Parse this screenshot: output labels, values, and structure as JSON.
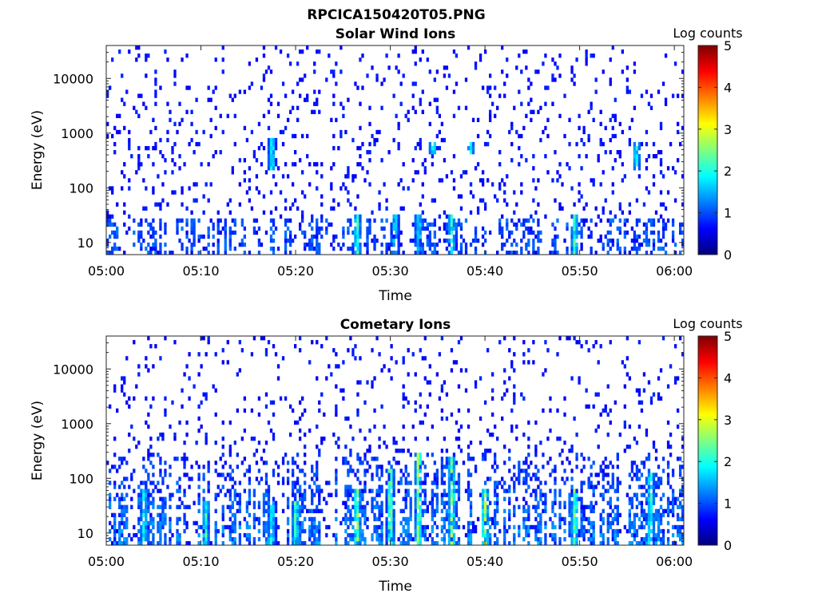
{
  "figure_title": "RPCICA150420T05.PNG",
  "chart_data": [
    {
      "type": "heatmap",
      "title": "Solar Wind Ions",
      "xlabel": "Time",
      "ylabel": "Energy (eV)",
      "yscale": "log",
      "xlim": [
        "05:00",
        "06:01"
      ],
      "ylim": [
        6,
        40000
      ],
      "xticks": [
        "05:00",
        "05:10",
        "05:20",
        "05:30",
        "05:40",
        "05:50",
        "06:00"
      ],
      "yticks": [
        "10",
        "100",
        "1000",
        "10000"
      ],
      "colorbar": {
        "label": "Log counts",
        "range": [
          0,
          5
        ],
        "ticks": [
          "0",
          "1",
          "2",
          "3",
          "4",
          "5"
        ],
        "colormap": "jet"
      },
      "grid": false,
      "summary": {
        "background_scatter_level": 0.3,
        "low_energy_band_ev": [
          6,
          28
        ],
        "low_energy_band_level": 0.5,
        "enhanced_features": [
          {
            "time": "05:17.5",
            "energy_ev": [
              200,
              800
            ],
            "log_counts": 1.6
          },
          {
            "time": "05:26.5",
            "energy_ev": [
              6,
              30
            ],
            "log_counts": 1.8
          },
          {
            "time": "05:30.5",
            "energy_ev": [
              6,
              30
            ],
            "log_counts": 1.3
          },
          {
            "time": "05:33",
            "energy_ev": [
              6,
              30
            ],
            "log_counts": 1.5
          },
          {
            "time": "05:34.5",
            "energy_ev": [
              400,
              700
            ],
            "log_counts": 1.7
          },
          {
            "time": "05:36.5",
            "energy_ev": [
              6,
              30
            ],
            "log_counts": 1.6
          },
          {
            "time": "05:38.5",
            "energy_ev": [
              400,
              700
            ],
            "log_counts": 1.5
          },
          {
            "time": "05:49.5",
            "energy_ev": [
              6,
              30
            ],
            "log_counts": 1.9
          },
          {
            "time": "05:56",
            "energy_ev": [
              200,
              700
            ],
            "log_counts": 1.5
          }
        ]
      }
    },
    {
      "type": "heatmap",
      "title": "Cometary Ions",
      "xlabel": "Time",
      "ylabel": "Energy (eV)",
      "yscale": "log",
      "xlim": [
        "05:00",
        "06:01"
      ],
      "ylim": [
        6,
        40000
      ],
      "xticks": [
        "05:00",
        "05:10",
        "05:20",
        "05:30",
        "05:40",
        "05:50",
        "06:00"
      ],
      "yticks": [
        "10",
        "100",
        "1000",
        "10000"
      ],
      "colorbar": {
        "label": "Log counts",
        "range": [
          0,
          5
        ],
        "ticks": [
          "0",
          "1",
          "2",
          "3",
          "4",
          "5"
        ],
        "colormap": "jet"
      },
      "grid": false,
      "summary": {
        "background_scatter_level": 0.3,
        "low_energy_band_ev": [
          6,
          300
        ],
        "enhanced_features": [
          {
            "time": "05:04",
            "energy_ev": [
              6,
              60
            ],
            "log_counts": 1.6
          },
          {
            "time": "05:10.5",
            "energy_ev": [
              6,
              40
            ],
            "log_counts": 1.8
          },
          {
            "time": "05:17.5",
            "energy_ev": [
              6,
              40
            ],
            "log_counts": 1.7
          },
          {
            "time": "05:20",
            "energy_ev": [
              6,
              40
            ],
            "log_counts": 1.9
          },
          {
            "time": "05:26.5",
            "energy_ev": [
              6,
              60
            ],
            "log_counts": 2.3
          },
          {
            "time": "05:30",
            "energy_ev": [
              6,
              150
            ],
            "log_counts": 2.5
          },
          {
            "time": "05:33",
            "energy_ev": [
              6,
              300
            ],
            "log_counts": 2.6
          },
          {
            "time": "05:36.5",
            "energy_ev": [
              6,
              250
            ],
            "log_counts": 2.4
          },
          {
            "time": "05:40",
            "energy_ev": [
              6,
              60
            ],
            "log_counts": 2.5
          },
          {
            "time": "05:49.5",
            "energy_ev": [
              6,
              60
            ],
            "log_counts": 2.3
          },
          {
            "time": "05:57.5",
            "energy_ev": [
              6,
              120
            ],
            "log_counts": 1.8
          }
        ]
      }
    }
  ]
}
